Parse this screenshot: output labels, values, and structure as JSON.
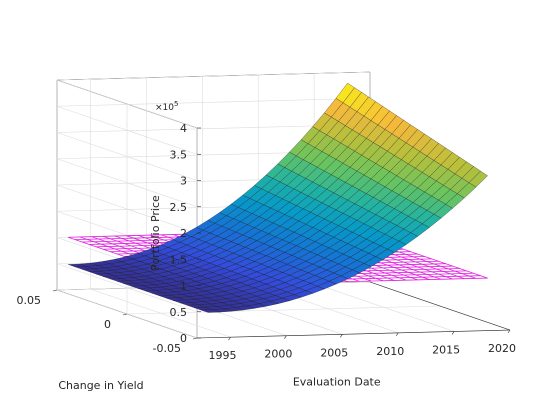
{
  "chart_data": {
    "type": "surface3d",
    "xlabel": "Evaluation Date",
    "ylabel": "Change in Yield",
    "zlabel": "Portfolio Price",
    "z_exponent_label": "×10",
    "z_exponent_power": "5",
    "xlim": [
      1992,
      2020
    ],
    "ylim": [
      -0.05,
      0.05
    ],
    "zlim": [
      0,
      4
    ],
    "z_scale": 100000,
    "x_ticks": [
      1995,
      2000,
      2005,
      2010,
      2015,
      2020
    ],
    "x_tick_labels": [
      "1995",
      "2000",
      "2005",
      "2010",
      "2015",
      "2020"
    ],
    "y_ticks": [
      -0.05,
      0,
      0.05
    ],
    "y_tick_labels": [
      "-0.05",
      "0",
      "0.05"
    ],
    "z_ticks": [
      0,
      0.5,
      1,
      1.5,
      2,
      2.5,
      3,
      3.5,
      4
    ],
    "z_tick_labels": [
      "0",
      "0.5",
      "1",
      "1.5",
      "2",
      "2.5",
      "3",
      "3.5",
      "4"
    ],
    "grid": true,
    "colormap": "parula",
    "series": [
      {
        "kind": "surface",
        "x_range": [
          1993,
          2018
        ],
        "y_range": [
          -0.05,
          0.05
        ],
        "z_corners": {
          "x_start_y_low": 0.48,
          "x_start_y_high": 0.48,
          "x_end_y_low": 2.95,
          "x_end_y_high": 3.8
        },
        "grid_cols": 24,
        "grid_rows": 20
      },
      {
        "kind": "mesh-plane",
        "x_range": [
          1993,
          2018
        ],
        "y_range": [
          -0.05,
          0.05
        ],
        "z_value": 1.0,
        "color": "#e020e0",
        "grid_cols": 24,
        "grid_rows": 20
      }
    ]
  }
}
